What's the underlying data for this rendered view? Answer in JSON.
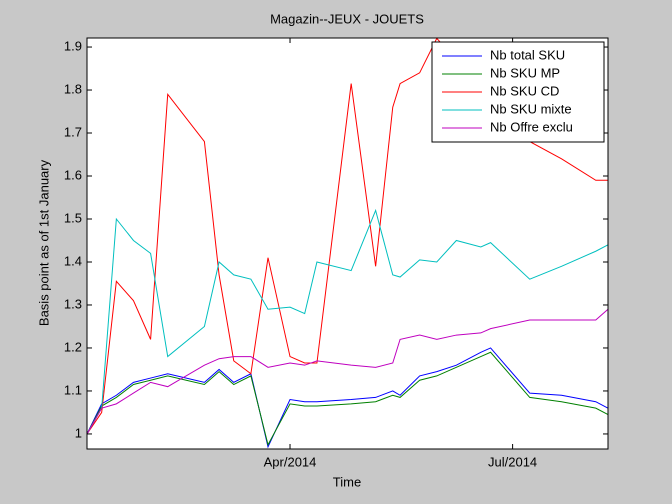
{
  "chart_data": {
    "type": "line",
    "title": "Magazin--JEUX - JOUETS",
    "xlabel": "Time",
    "ylabel": "Basis point as of 1st January",
    "x": [
      -83,
      -77,
      -71,
      -64,
      -57,
      -50,
      -35,
      -29,
      -23,
      -16,
      -9,
      0,
      6,
      11,
      25,
      35,
      42,
      45,
      53,
      60,
      68,
      78,
      82,
      98,
      111,
      125,
      130
    ],
    "xlim": [
      -83,
      130
    ],
    "xticks": [
      {
        "value": 0,
        "label": "Apr/2014"
      },
      {
        "value": 91,
        "label": "Jul/2014"
      }
    ],
    "ylim": [
      0.965,
      1.921
    ],
    "yticks": [
      1,
      1.1,
      1.2,
      1.3,
      1.4,
      1.5,
      1.6,
      1.7,
      1.8,
      1.9
    ],
    "legend": "upper right",
    "series": [
      {
        "name": "Nb total SKU",
        "color": "#0000ff",
        "values": [
          1.0,
          1.07,
          1.09,
          1.12,
          1.13,
          1.14,
          1.12,
          1.15,
          1.12,
          1.14,
          0.97,
          1.08,
          1.075,
          1.075,
          1.08,
          1.085,
          1.1,
          1.09,
          1.135,
          1.145,
          1.16,
          1.19,
          1.2,
          1.095,
          1.09,
          1.075,
          1.06
        ]
      },
      {
        "name": "Nb SKU MP",
        "color": "#008000",
        "values": [
          1.0,
          1.065,
          1.085,
          1.115,
          1.125,
          1.135,
          1.115,
          1.145,
          1.115,
          1.135,
          0.975,
          1.07,
          1.065,
          1.065,
          1.07,
          1.075,
          1.09,
          1.085,
          1.125,
          1.135,
          1.155,
          1.18,
          1.19,
          1.085,
          1.075,
          1.06,
          1.045
        ]
      },
      {
        "name": "Nb SKU CD",
        "color": "#ff0000",
        "values": [
          1.0,
          1.05,
          1.355,
          1.31,
          1.22,
          1.79,
          1.68,
          1.37,
          1.17,
          1.14,
          1.41,
          1.18,
          1.165,
          1.165,
          1.815,
          1.39,
          1.76,
          1.815,
          1.84,
          1.92,
          1.87,
          1.8,
          1.78,
          1.68,
          1.64,
          1.59,
          1.59
        ]
      },
      {
        "name": "Nb SKU mixte",
        "color": "#00bfbf",
        "values": [
          1.0,
          1.06,
          1.5,
          1.45,
          1.42,
          1.18,
          1.25,
          1.4,
          1.37,
          1.36,
          1.29,
          1.295,
          1.28,
          1.4,
          1.38,
          1.52,
          1.37,
          1.365,
          1.405,
          1.4,
          1.45,
          1.435,
          1.445,
          1.36,
          1.39,
          1.425,
          1.44
        ]
      },
      {
        "name": "Nb Offre exclu",
        "color": "#bf00bf",
        "values": [
          1.0,
          1.06,
          1.07,
          1.095,
          1.12,
          1.11,
          1.16,
          1.175,
          1.18,
          1.18,
          1.155,
          1.165,
          1.16,
          1.17,
          1.16,
          1.155,
          1.165,
          1.22,
          1.23,
          1.22,
          1.23,
          1.235,
          1.245,
          1.265,
          1.265,
          1.265,
          1.29
        ]
      }
    ]
  }
}
